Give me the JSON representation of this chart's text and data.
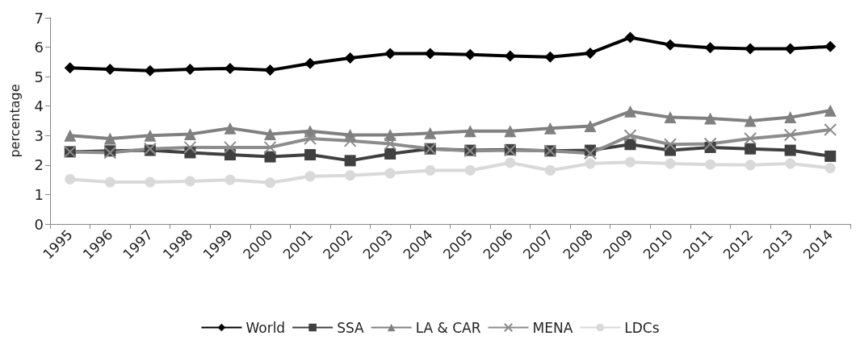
{
  "chart_data": {
    "type": "line",
    "ylabel": "percentage",
    "categories": [
      "1995",
      "1996",
      "1997",
      "1998",
      "1999",
      "2000",
      "2001",
      "2002",
      "2003",
      "2004",
      "2005",
      "2006",
      "2007",
      "2008",
      "2009",
      "2010",
      "2011",
      "2012",
      "2013",
      "2014"
    ],
    "ylim": [
      0,
      7
    ],
    "yticks": [
      0,
      1,
      2,
      3,
      4,
      5,
      6,
      7
    ],
    "grid": false,
    "legend": "bottom",
    "series": [
      {
        "name": "World",
        "color": "#000000",
        "marker": "diamond",
        "values": [
          5.3,
          5.25,
          5.2,
          5.25,
          5.28,
          5.22,
          5.45,
          5.63,
          5.78,
          5.78,
          5.75,
          5.7,
          5.67,
          5.8,
          6.33,
          6.08,
          5.98,
          5.95,
          5.95,
          6.02
        ]
      },
      {
        "name": "SSA",
        "color": "#404040",
        "marker": "square",
        "values": [
          2.45,
          2.48,
          2.5,
          2.42,
          2.35,
          2.28,
          2.35,
          2.15,
          2.38,
          2.55,
          2.5,
          2.52,
          2.48,
          2.5,
          2.7,
          2.5,
          2.6,
          2.55,
          2.5,
          2.3
        ]
      },
      {
        "name": "LA & CAR",
        "color": "#808080",
        "marker": "triangle",
        "values": [
          3.0,
          2.9,
          3.0,
          3.05,
          3.25,
          3.05,
          3.15,
          3.02,
          3.02,
          3.08,
          3.15,
          3.15,
          3.25,
          3.32,
          3.82,
          3.62,
          3.58,
          3.5,
          3.62,
          3.85
        ]
      },
      {
        "name": "MENA",
        "color": "#8c8c8c",
        "marker": "cross",
        "values": [
          2.45,
          2.42,
          2.55,
          2.6,
          2.6,
          2.6,
          2.9,
          2.82,
          2.72,
          2.55,
          2.48,
          2.5,
          2.48,
          2.4,
          3.0,
          2.7,
          2.72,
          2.9,
          3.02,
          3.2
        ]
      },
      {
        "name": "LDCs",
        "color": "#d9d9d9",
        "marker": "circle",
        "values": [
          1.52,
          1.42,
          1.42,
          1.45,
          1.5,
          1.4,
          1.62,
          1.65,
          1.72,
          1.82,
          1.82,
          2.08,
          1.82,
          2.05,
          2.1,
          2.05,
          2.02,
          2.0,
          2.05,
          1.9
        ]
      }
    ]
  }
}
